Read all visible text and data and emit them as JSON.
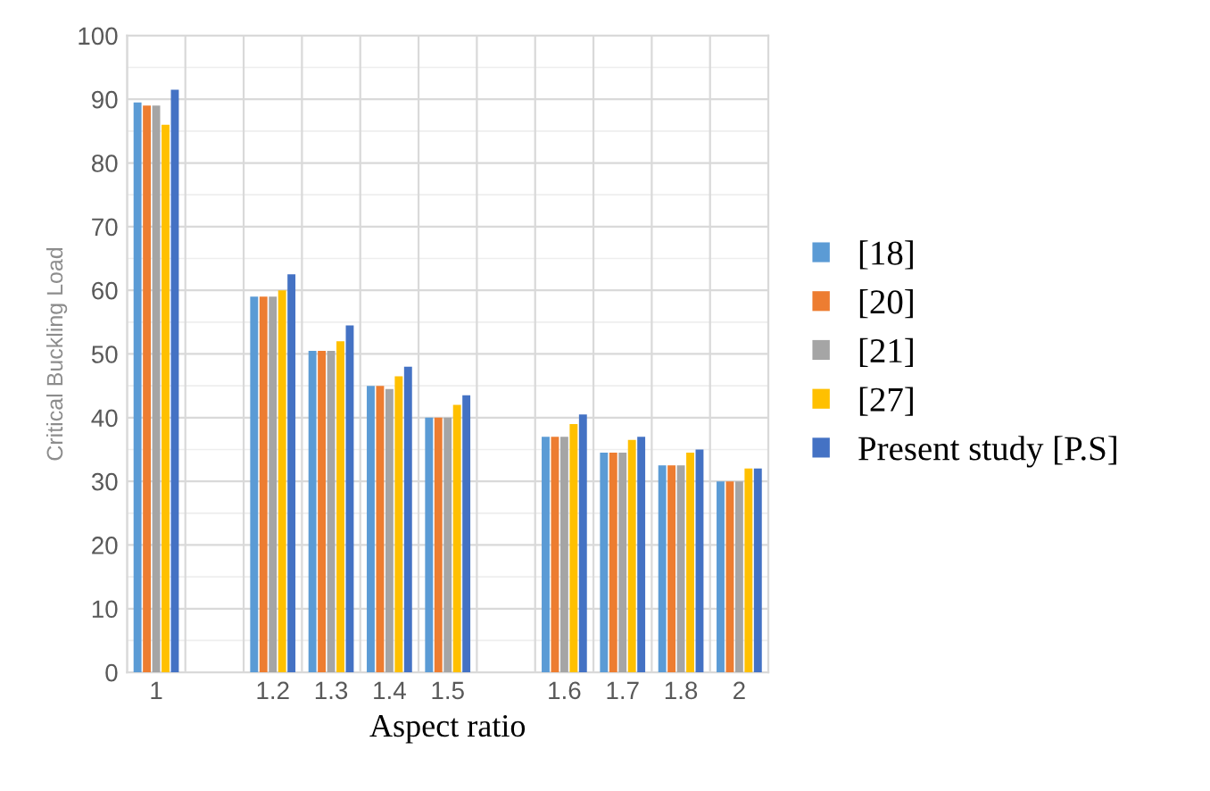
{
  "chart_data": {
    "type": "bar",
    "xlabel": "Aspect ratio",
    "ylabel": "Critical Buckling Load",
    "categories": [
      "1",
      null,
      "1.2",
      "1.3",
      "1.4",
      "1.5",
      null,
      "1.6",
      "1.7",
      "1.8",
      "2"
    ],
    "series": [
      {
        "name": "[18]",
        "color": "#5b9bd5",
        "values": [
          89.5,
          null,
          59,
          50.5,
          45,
          40,
          null,
          37,
          34.5,
          32.5,
          30
        ]
      },
      {
        "name": "[20]",
        "color": "#ed7d31",
        "values": [
          89,
          null,
          59,
          50.5,
          45,
          40,
          null,
          37,
          34.5,
          32.5,
          30
        ]
      },
      {
        "name": "[21]",
        "color": "#a5a5a5",
        "values": [
          89,
          null,
          59,
          50.5,
          44.5,
          40,
          null,
          37,
          34.5,
          32.5,
          30
        ]
      },
      {
        "name": "[27]",
        "color": "#ffc000",
        "values": [
          86,
          null,
          60,
          52,
          46.5,
          42,
          null,
          39,
          36.5,
          34.5,
          32
        ]
      },
      {
        "name": "Present study [P.S]",
        "color": "#4472c4",
        "values": [
          91.5,
          null,
          62.5,
          54.5,
          48,
          43.5,
          null,
          40.5,
          37,
          35,
          32
        ]
      }
    ],
    "ylim": [
      0,
      100
    ],
    "yticks": [
      0,
      10,
      20,
      30,
      40,
      50,
      60,
      70,
      80,
      90,
      100
    ],
    "grid": true,
    "legend": "right"
  }
}
